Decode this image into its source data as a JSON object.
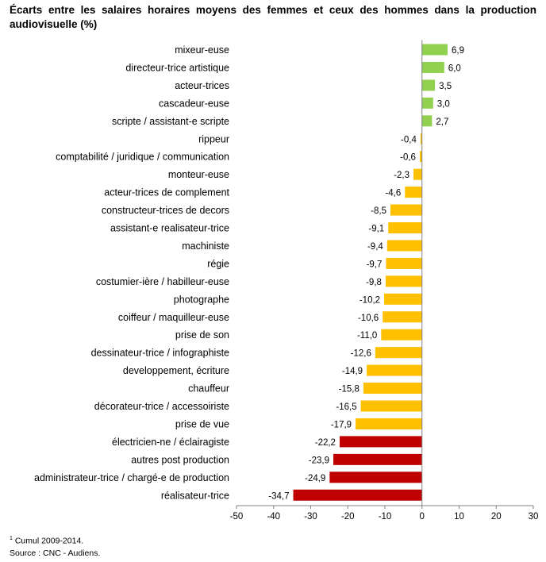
{
  "title": "Écarts entre les salaires horaires moyens des femmes et ceux des hommes dans la production audiovisuelle (%)",
  "footnote": {
    "mark": "1",
    "text": " Cumul 2009-2014.",
    "source": "Source : CNC - Audiens."
  },
  "colors": {
    "positive": "#92D050",
    "negative_mid": "#FFC000",
    "negative_low": "#C00000",
    "axis": "#808080"
  },
  "chart_data": {
    "type": "bar",
    "orientation": "horizontal",
    "title": "Écarts entre les salaires horaires moyens des femmes et ceux des hommes dans la production audiovisuelle (%)",
    "xlim": [
      -50,
      30
    ],
    "x_ticks": [
      -50,
      -40,
      -30,
      -20,
      -10,
      0,
      10,
      20,
      30
    ],
    "grid": false,
    "categories": [
      "mixeur-euse",
      "directeur-trice artistique",
      "acteur-trices",
      "cascadeur-euse",
      "scripte / assistant-e scripte",
      "rippeur",
      "comptabilité / juridique / communication",
      "monteur-euse",
      "acteur-trices de complement",
      "constructeur-trices de decors",
      "assistant-e realisateur-trice",
      "machiniste",
      "régie",
      "costumier-ière / habilleur-euse",
      "photographe",
      "coiffeur / maquilleur-euse",
      "prise de son",
      "dessinateur-trice / infographiste",
      "developpement, écriture",
      "chauffeur",
      "décorateur-trice / accessoiriste",
      "prise de vue",
      "électricien-ne / éclairagiste",
      "autres post production",
      "administrateur-trice / chargé-e de production",
      "réalisateur-trice"
    ],
    "values": [
      6.9,
      6.0,
      3.5,
      3.0,
      2.7,
      -0.4,
      -0.6,
      -2.3,
      -4.6,
      -8.5,
      -9.1,
      -9.4,
      -9.7,
      -9.8,
      -10.2,
      -10.6,
      -11.0,
      -12.6,
      -14.9,
      -15.8,
      -16.5,
      -17.9,
      -22.2,
      -23.9,
      -24.9,
      -34.7
    ],
    "value_labels": [
      "6,9",
      "6,0",
      "3,5",
      "3,0",
      "2,7",
      "-0,4",
      "-0,6",
      "-2,3",
      "-4,6",
      "-8,5",
      "-9,1",
      "-9,4",
      "-9,7",
      "-9,8",
      "-10,2",
      "-10,6",
      "-11,0",
      "-12,6",
      "-14,9",
      "-15,8",
      "-16,5",
      "-17,9",
      "-22,2",
      "-23,9",
      "-24,9",
      "-34,7"
    ],
    "color_groups": [
      "positive",
      "positive",
      "positive",
      "positive",
      "positive",
      "negative_mid",
      "negative_mid",
      "negative_mid",
      "negative_mid",
      "negative_mid",
      "negative_mid",
      "negative_mid",
      "negative_mid",
      "negative_mid",
      "negative_mid",
      "negative_mid",
      "negative_mid",
      "negative_mid",
      "negative_mid",
      "negative_mid",
      "negative_mid",
      "negative_mid",
      "negative_low",
      "negative_low",
      "negative_low",
      "negative_low"
    ]
  }
}
